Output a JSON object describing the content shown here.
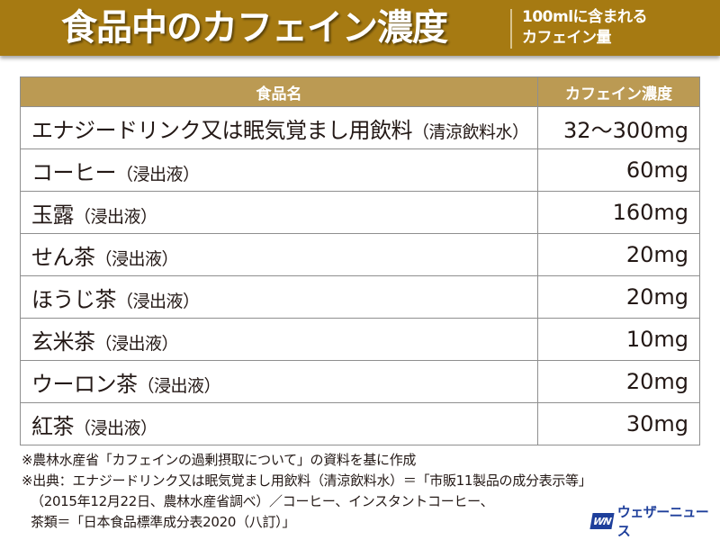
{
  "banner": {
    "title": "食品中のカフェイン濃度",
    "subtitle_line1": "100mlに含まれる",
    "subtitle_line2": "カフェイン量",
    "background_color": "#a67a12"
  },
  "table": {
    "header_color": "#bb9a53",
    "columns": [
      "食品名",
      "カフェイン濃度"
    ],
    "rows": [
      {
        "name": "エナジードリンク又は眠気覚まし用飲料",
        "note": "（清涼飲料水）",
        "value": "32〜300mg"
      },
      {
        "name": "コーヒー",
        "note": "（浸出液）",
        "value": "60mg"
      },
      {
        "name": "玉露",
        "note": "（浸出液）",
        "value": "160mg"
      },
      {
        "name": "せん茶",
        "note": "（浸出液）",
        "value": "20mg"
      },
      {
        "name": "ほうじ茶",
        "note": "（浸出液）",
        "value": "20mg"
      },
      {
        "name": "玄米茶",
        "note": "（浸出液）",
        "value": "10mg"
      },
      {
        "name": "ウーロン茶",
        "note": "（浸出液）",
        "value": "20mg"
      },
      {
        "name": "紅茶",
        "note": "（浸出液）",
        "value": "30mg"
      }
    ]
  },
  "notes": [
    "※農林水産省「カフェインの過剰摂取について」の資料を基に作成",
    "※出典：エナジードリンク又は眠気覚まし用飲料（清涼飲料水）＝「市販11製品の成分表示等」",
    "（2015年12月22日、農林水産省調べ）／コーヒー、インスタントコーヒー、",
    "茶類＝「日本食品標準成分表2020（八訂）」"
  ],
  "logo": {
    "mark": "WN",
    "text": "ウェザーニュース",
    "color": "#1e3f9b"
  }
}
